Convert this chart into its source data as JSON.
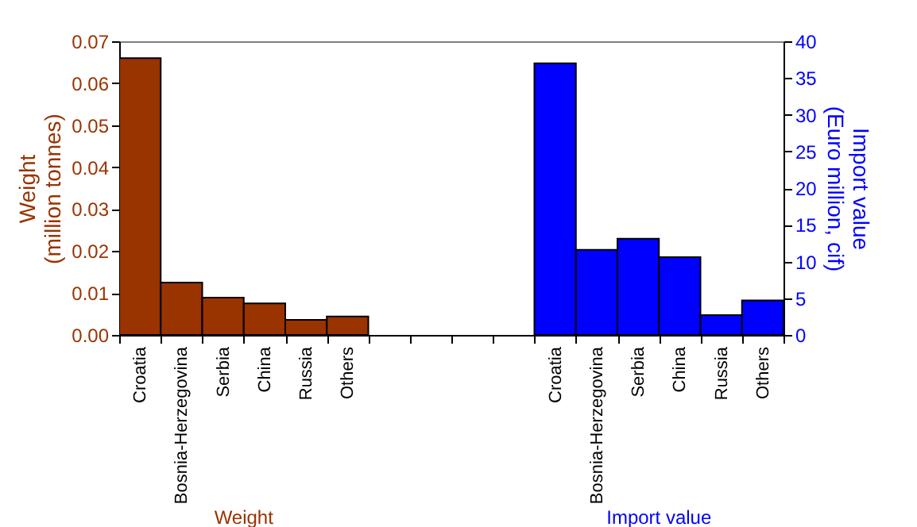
{
  "chart_data": {
    "type": "bar",
    "ylabel": "Weight\n(million tonnes)",
    "y2label": "Import value\n(Euro million, cif)",
    "categories": [
      "Croatia",
      "Bosnia-Herzegovina",
      "Serbia",
      "China",
      "Russia",
      "Others",
      null,
      null,
      null,
      null,
      "Croatia",
      "Bosnia-Herzegovina",
      "Serbia",
      "China",
      "Russia",
      "Others"
    ],
    "series": [
      {
        "name": "Weight",
        "color": "#993300",
        "values": [
          0.066,
          0.0125,
          0.0089,
          0.0075,
          0.0036,
          0.0044,
          null,
          null,
          null,
          null,
          null,
          null,
          null,
          null,
          null,
          null
        ]
      },
      {
        "name": "Import value",
        "color": "#0000ff",
        "axis": "y2",
        "values": [
          null,
          null,
          null,
          null,
          null,
          null,
          null,
          null,
          null,
          null,
          37,
          11.6,
          13.1,
          10.6,
          2.7,
          4.7
        ]
      }
    ],
    "ylim": [
      0,
      0.07
    ],
    "yticks": [
      {
        "value": 0,
        "label": "0.00"
      },
      {
        "value": 0.01,
        "label": "0.01"
      },
      {
        "value": 0.02,
        "label": "0.02"
      },
      {
        "value": 0.03,
        "label": "0.03"
      },
      {
        "value": 0.04,
        "label": "0.04"
      },
      {
        "value": 0.05,
        "label": "0.05"
      },
      {
        "value": 0.06,
        "label": "0.06"
      },
      {
        "value": 0.07,
        "label": "0.07"
      }
    ],
    "y2lim": [
      0,
      40
    ],
    "y2ticks": [
      0,
      5,
      10,
      15,
      20,
      25,
      30,
      35,
      40
    ],
    "grid": false
  }
}
